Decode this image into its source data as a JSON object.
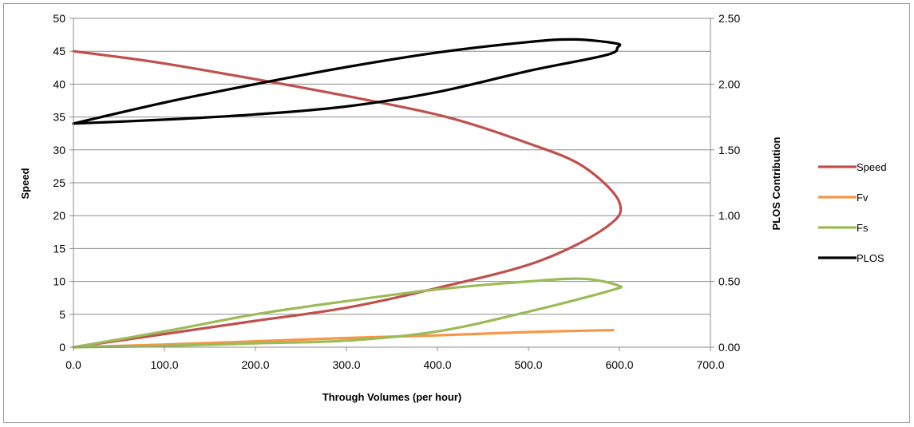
{
  "chart_data": {
    "type": "line",
    "title": "",
    "xlabel": "Through Volumes (per hour)",
    "ylabel": "Speed",
    "y2label": "PLOS Contribution",
    "xlim": [
      0,
      700
    ],
    "ylim": [
      0,
      50
    ],
    "y2lim": [
      0,
      2.5
    ],
    "x_ticks": [
      "0.0",
      "100.0",
      "200.0",
      "300.0",
      "400.0",
      "500.0",
      "600.0",
      "700.0"
    ],
    "y_ticks": [
      "0",
      "5",
      "10",
      "15",
      "20",
      "25",
      "30",
      "35",
      "40",
      "45",
      "50"
    ],
    "y2_ticks": [
      "0.00",
      "0.50",
      "1.00",
      "1.50",
      "2.00",
      "2.50"
    ],
    "grid": true,
    "legend_position": "right",
    "series": [
      {
        "name": "Speed",
        "axis": "left",
        "color": "#c0504d",
        "points": [
          [
            0,
            45
          ],
          [
            88,
            43.4
          ],
          [
            190,
            41
          ],
          [
            300,
            38.2
          ],
          [
            410,
            35
          ],
          [
            500,
            31
          ],
          [
            560,
            27.5
          ],
          [
            600,
            22
          ],
          [
            585,
            18.2
          ],
          [
            510,
            13
          ],
          [
            400,
            9
          ],
          [
            300,
            6
          ],
          [
            200,
            4
          ],
          [
            100,
            2
          ],
          [
            0,
            0
          ]
        ]
      },
      {
        "name": "Fv",
        "axis": "right",
        "color": "#f79646",
        "points": [
          [
            0,
            0
          ],
          [
            100,
            0.02
          ],
          [
            200,
            0.045
          ],
          [
            300,
            0.07
          ],
          [
            400,
            0.09
          ],
          [
            500,
            0.115
          ],
          [
            593,
            0.13
          ]
        ]
      },
      {
        "name": "Fs",
        "axis": "right",
        "color": "#9bbb59",
        "points": [
          [
            0,
            0
          ],
          [
            100,
            0.12
          ],
          [
            200,
            0.25
          ],
          [
            300,
            0.35
          ],
          [
            400,
            0.44
          ],
          [
            500,
            0.5
          ],
          [
            560,
            0.52
          ],
          [
            598,
            0.47
          ],
          [
            590,
            0.43
          ],
          [
            500,
            0.27
          ],
          [
            400,
            0.12
          ],
          [
            300,
            0.05
          ],
          [
            200,
            0.03
          ],
          [
            100,
            0.01
          ],
          [
            0,
            0
          ]
        ]
      },
      {
        "name": "PLOS",
        "axis": "right",
        "color": "#000000",
        "points": [
          [
            0,
            1.7
          ],
          [
            100,
            1.86
          ],
          [
            200,
            2.0
          ],
          [
            300,
            2.13
          ],
          [
            400,
            2.24
          ],
          [
            500,
            2.32
          ],
          [
            550,
            2.34
          ],
          [
            596,
            2.31
          ],
          [
            598,
            2.28
          ],
          [
            585,
            2.22
          ],
          [
            500,
            2.1
          ],
          [
            400,
            1.94
          ],
          [
            300,
            1.83
          ],
          [
            200,
            1.77
          ],
          [
            100,
            1.73
          ],
          [
            0,
            1.7
          ]
        ]
      }
    ]
  }
}
